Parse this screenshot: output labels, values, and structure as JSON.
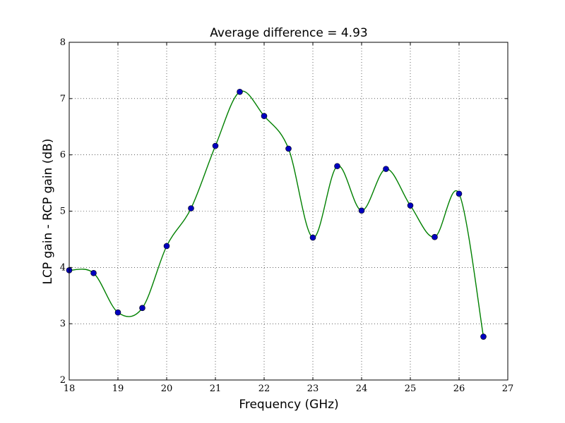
{
  "chart_data": {
    "type": "line",
    "title": "Average difference = 4.93",
    "xlabel": "Frequency (GHz)",
    "ylabel": "LCP gain - RCP gain (dB)",
    "xlim": [
      18,
      27
    ],
    "ylim": [
      2,
      8
    ],
    "xticks": [
      "18",
      "19",
      "20",
      "21",
      "22",
      "23",
      "24",
      "25",
      "26",
      "27"
    ],
    "yticks": [
      "2",
      "3",
      "4",
      "5",
      "6",
      "7",
      "8"
    ],
    "grid": true,
    "series": [
      {
        "marker_color": "#0000bf",
        "curve_color": "#008000",
        "x": [
          18.0,
          18.5,
          19.0,
          19.5,
          20.0,
          20.5,
          21.0,
          21.5,
          22.0,
          22.5,
          23.0,
          23.5,
          24.0,
          24.5,
          25.0,
          25.5,
          26.0,
          26.5
        ],
        "y": [
          3.95,
          3.9,
          3.2,
          3.28,
          4.38,
          5.05,
          6.16,
          7.12,
          6.69,
          6.11,
          4.53,
          5.8,
          5.01,
          5.75,
          5.1,
          4.54,
          5.31,
          2.77
        ]
      }
    ]
  }
}
